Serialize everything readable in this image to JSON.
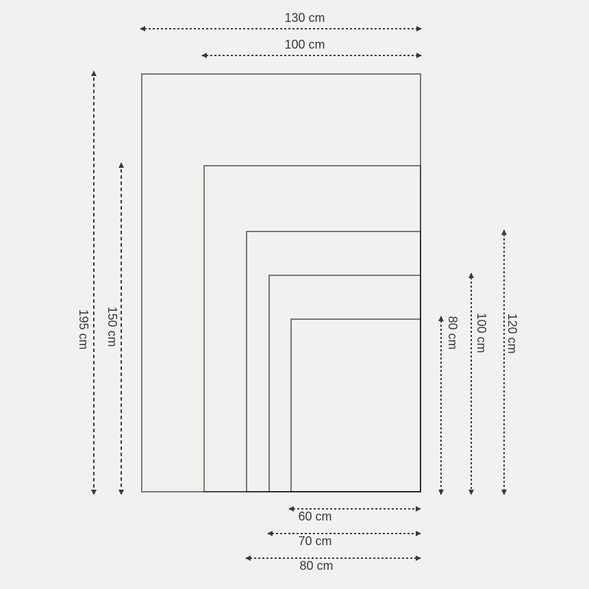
{
  "diagram": {
    "kind": "nested-size-chart",
    "unit": "cm",
    "sizes_cm": [
      {
        "width": 60,
        "height": 80
      },
      {
        "width": 70,
        "height": 100
      },
      {
        "width": 80,
        "height": 120
      },
      {
        "width": 100,
        "height": 150
      },
      {
        "width": 130,
        "height": 195
      }
    ]
  },
  "labels": {
    "top_130": "130 cm",
    "top_100": "100 cm",
    "left_195": "195 cm",
    "left_150": "150 cm",
    "right_80": "80 cm",
    "right_100": "100 cm",
    "right_120": "120 cm",
    "bottom_60": "60 cm",
    "bottom_70": "70 cm",
    "bottom_80": "80 cm"
  },
  "colors": {
    "background": "#f2f1ef",
    "rect_border": "#7b7b7b",
    "dimension_ink": "#3a3a3a"
  }
}
